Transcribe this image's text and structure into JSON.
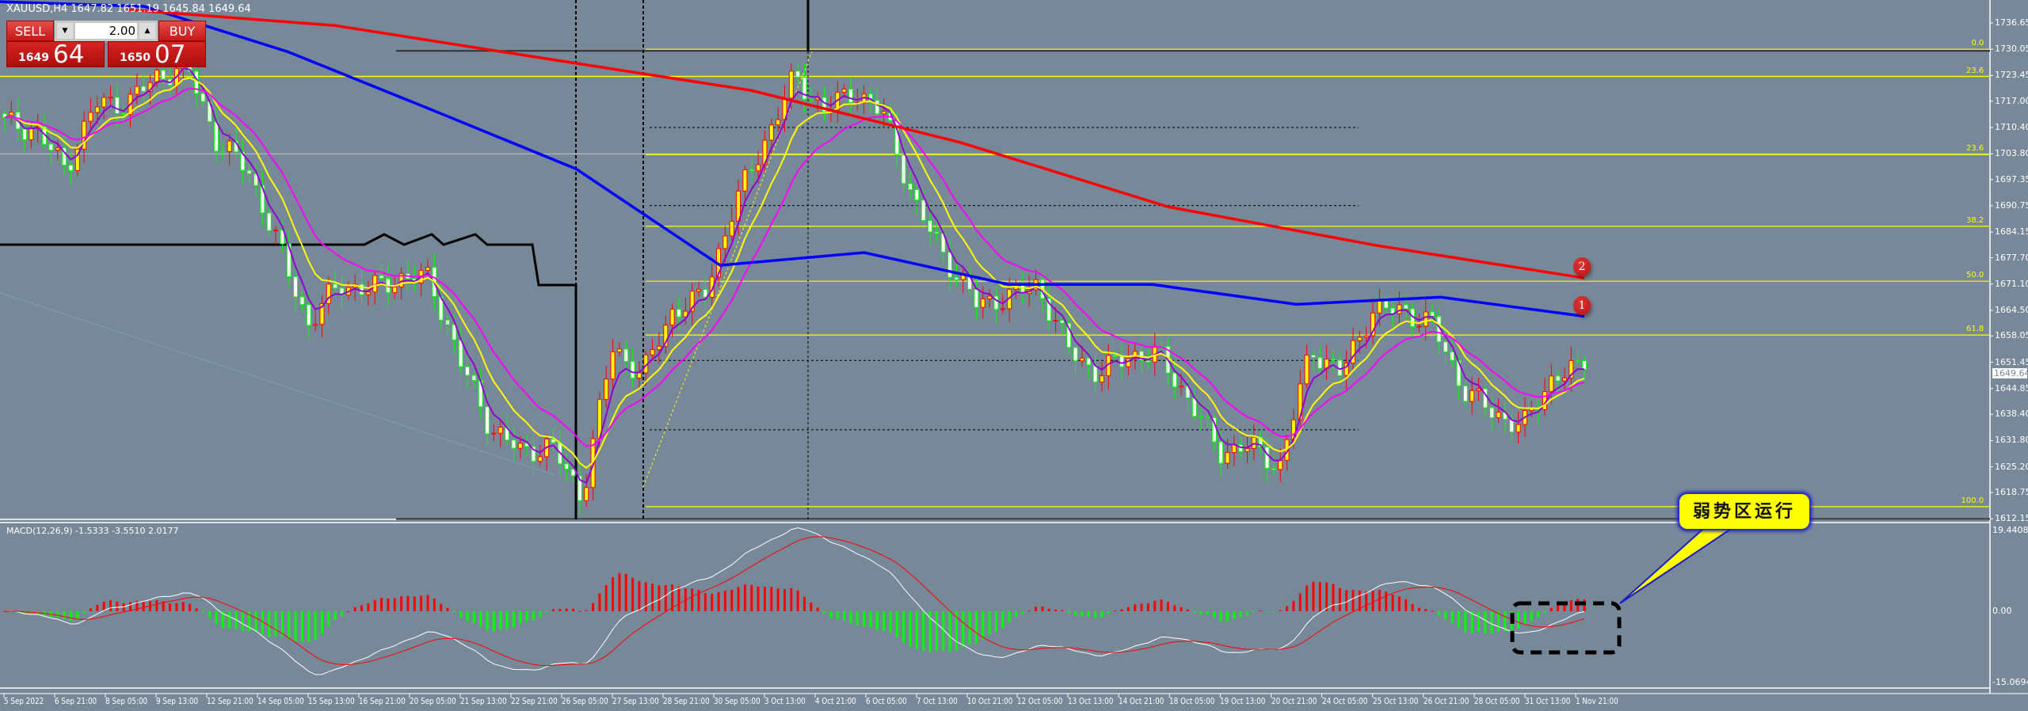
{
  "header": {
    "symbol_line": "XAUUSD,H4  1647.82 1651.19 1645.84 1649.64"
  },
  "trade_panel": {
    "sell_label": "SELL",
    "buy_label": "BUY",
    "lot_value": "2.00",
    "sell_price_big": "1649",
    "sell_price_pips": "64",
    "buy_price_big": "1650",
    "buy_price_pips": "07",
    "down_arrow": "▼",
    "up_arrow": "▲"
  },
  "price_axis": {
    "ticks": [
      "1736.65",
      "1730.05",
      "1723.45",
      "1717.00",
      "1710.40",
      "1703.80",
      "1697.35",
      "1690.75",
      "1684.15",
      "1677.70",
      "1671.10",
      "1664.50",
      "1658.05",
      "1651.45",
      "1644.85",
      "1638.40",
      "1631.80",
      "1625.20",
      "1618.75",
      "1612.15"
    ],
    "current_price": "1649.64"
  },
  "fib_levels": [
    {
      "label": "0.0",
      "price": 1730.05
    },
    {
      "label": "23.6",
      "price": 1723.2
    },
    {
      "label": "23.6",
      "price": 1703.6
    },
    {
      "label": "38.2",
      "price": 1685.6
    },
    {
      "label": "50.0",
      "price": 1671.8
    },
    {
      "label": "61.8",
      "price": 1658.3
    },
    {
      "label": "100.0",
      "price": 1615.2
    }
  ],
  "macd": {
    "label": "MACD(12,26,9) -1.5333 -3.5510 2.0177",
    "ticks": [
      "19.4408",
      "0.00",
      "-15.0694"
    ]
  },
  "time_axis": [
    "5 Sep 2022",
    "6 Sep 21:00",
    "8 Sep 05:00",
    "9 Sep 13:00",
    "12 Sep 21:00",
    "14 Sep 05:00",
    "15 Sep 13:00",
    "16 Sep 21:00",
    "20 Sep 05:00",
    "21 Sep 13:00",
    "22 Sep 21:00",
    "26 Sep 05:00",
    "27 Sep 13:00",
    "28 Sep 21:00",
    "30 Sep 05:00",
    "3 Oct 13:00",
    "4 Oct 21:00",
    "6 Oct 05:00",
    "7 Oct 13:00",
    "10 Oct 21:00",
    "12 Oct 05:00",
    "13 Oct 13:00",
    "14 Oct 21:00",
    "18 Oct 05:00",
    "19 Oct 13:00",
    "20 Oct 21:00",
    "24 Oct 05:00",
    "25 Oct 13:00",
    "26 Oct 21:00",
    "28 Oct 05:00",
    "31 Oct 13:00",
    "1 Nov 21:00"
  ],
  "annotations": {
    "marker_1": "1",
    "marker_2": "2",
    "callout": "弱势区运行"
  },
  "colors": {
    "background": "#778899",
    "bull_body": "#ffff00",
    "bull_edge": "#ff0000",
    "bear_body": "#ffffff",
    "bear_edge": "#00ff00",
    "ma_long": "#ff0000",
    "ma_mid": "#0000ff",
    "ma_fast": "#9400d3",
    "ma_yellow": "#ffff00",
    "ma_magenta": "#ff00ff",
    "macd_up": "#ff0000",
    "macd_down": "#00ff00",
    "callout": "#ffff00"
  },
  "chart_data": {
    "type": "candlestick",
    "symbol": "XAUUSD",
    "timeframe": "H4",
    "ylim": [
      1612.15,
      1736.65
    ],
    "close_path": [
      1711.6,
      1710,
      1700,
      1716.4,
      1716.4,
      1723,
      1726,
      1706.7,
      1700,
      1681,
      1661,
      1671,
      1669.6,
      1672.6,
      1672.6,
      1651.5,
      1635,
      1629,
      1630.4,
      1617.6,
      1655,
      1648.4,
      1664.5,
      1667.8,
      1690.5,
      1706.7,
      1723,
      1714.8,
      1719.7,
      1713,
      1690.5,
      1677.4,
      1666,
      1667.8,
      1671,
      1655,
      1648.4,
      1653.3,
      1653.3,
      1641.8,
      1629,
      1630.4,
      1625.4,
      1655,
      1648.4,
      1664.5,
      1664.5,
      1661,
      1645,
      1638.6,
      1635.4,
      1648.4,
      1649.64
    ],
    "ma_red": [
      1740,
      1736,
      1727.8,
      1719.7,
      1706.7,
      1690.5,
      1680.8,
      1672.6
    ],
    "ma_blue": [
      1742,
      1740.8,
      1729.4,
      1714.8,
      1700,
      1675.8,
      1679,
      1671,
      1671,
      1666,
      1667.8,
      1663
    ],
    "macd_ylim": [
      -15.0694,
      19.4408
    ]
  }
}
